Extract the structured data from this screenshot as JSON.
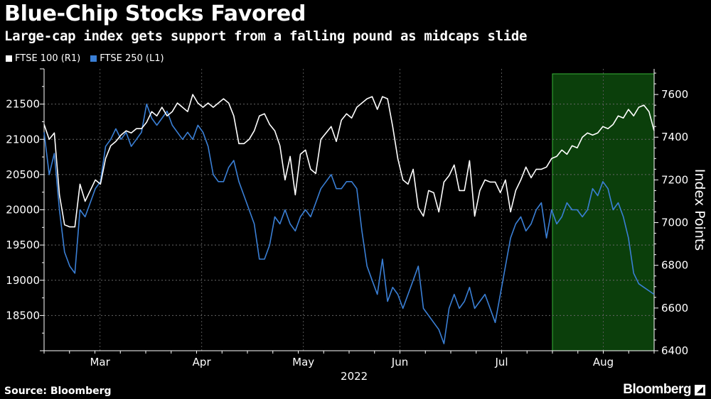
{
  "chart_data": {
    "type": "line",
    "title": "Blue-Chip Stocks Favored",
    "subtitle": "Large-cap index gets support from a falling pound as midcaps slide",
    "right_axis_label": "Index Points",
    "year_label": "2022",
    "source": "Source: Bloomberg",
    "brand": "Bloomberg",
    "months": [
      "Mar",
      "Apr",
      "May",
      "Jun",
      "Jul",
      "Aug"
    ],
    "left_axis": {
      "min": 18000,
      "max": 22000,
      "ticks": [
        18500,
        19000,
        19500,
        20000,
        20500,
        21000,
        21500
      ]
    },
    "right_axis": {
      "min": 6400,
      "max": 7720,
      "ticks": [
        6400,
        6600,
        6800,
        7000,
        7200,
        7400,
        7600
      ]
    },
    "x_range": [
      0,
      120
    ],
    "month_positions": [
      11,
      31,
      51,
      70,
      90,
      110
    ],
    "highlight": {
      "from": 100,
      "to": 120
    },
    "colors": {
      "ftse100": "#ffffff",
      "ftse250": "#3a7fd5",
      "highlight": "#0b3f0b",
      "highlight_border": "#37b337"
    },
    "series": [
      {
        "name": "FTSE 100 (R1)",
        "axis": "right",
        "values": [
          7460,
          7390,
          7420,
          7130,
          6990,
          6980,
          6980,
          7180,
          7100,
          7150,
          7200,
          7180,
          7300,
          7360,
          7380,
          7410,
          7430,
          7420,
          7440,
          7440,
          7470,
          7520,
          7500,
          7540,
          7500,
          7520,
          7560,
          7540,
          7520,
          7600,
          7560,
          7540,
          7560,
          7540,
          7560,
          7580,
          7560,
          7500,
          7370,
          7370,
          7390,
          7430,
          7500,
          7510,
          7460,
          7430,
          7360,
          7200,
          7310,
          7130,
          7320,
          7340,
          7250,
          7230,
          7390,
          7420,
          7450,
          7380,
          7480,
          7510,
          7490,
          7540,
          7560,
          7580,
          7590,
          7530,
          7590,
          7580,
          7450,
          7300,
          7200,
          7180,
          7250,
          7070,
          7030,
          7150,
          7140,
          7050,
          7190,
          7220,
          7270,
          7150,
          7150,
          7290,
          7030,
          7150,
          7200,
          7190,
          7190,
          7140,
          7200,
          7050,
          7150,
          7200,
          7260,
          7210,
          7250,
          7250,
          7260,
          7300,
          7310,
          7340,
          7320,
          7360,
          7350,
          7400,
          7420,
          7410,
          7420,
          7450,
          7440,
          7460,
          7500,
          7490,
          7530,
          7500,
          7540,
          7550,
          7520,
          7430
        ]
      },
      {
        "name": "FTSE 250 (L1)",
        "axis": "left",
        "values": [
          21100,
          20500,
          20800,
          20000,
          19400,
          19200,
          19100,
          20000,
          19900,
          20100,
          20300,
          20400,
          20900,
          21000,
          21150,
          21000,
          21100,
          20900,
          21000,
          21100,
          21500,
          21300,
          21200,
          21300,
          21400,
          21200,
          21100,
          21000,
          21100,
          21000,
          21200,
          21100,
          20900,
          20500,
          20400,
          20400,
          20600,
          20700,
          20400,
          20200,
          20000,
          19800,
          19300,
          19300,
          19500,
          19900,
          19800,
          20000,
          19800,
          19700,
          19900,
          20000,
          19900,
          20100,
          20300,
          20400,
          20500,
          20300,
          20300,
          20400,
          20400,
          20300,
          19700,
          19200,
          19000,
          18800,
          19300,
          18700,
          18900,
          18800,
          18600,
          18800,
          19000,
          19200,
          18600,
          18500,
          18400,
          18300,
          18100,
          18600,
          18800,
          18600,
          18700,
          18900,
          18600,
          18700,
          18800,
          18600,
          18400,
          18800,
          19200,
          19600,
          19800,
          19900,
          19700,
          19800,
          20000,
          20100,
          19600,
          20000,
          19800,
          19900,
          20100,
          20000,
          20000,
          19900,
          20000,
          20300,
          20200,
          20400,
          20300,
          20000,
          20100,
          19900,
          19600,
          19100,
          18950,
          18900,
          18850,
          18800
        ]
      }
    ]
  }
}
